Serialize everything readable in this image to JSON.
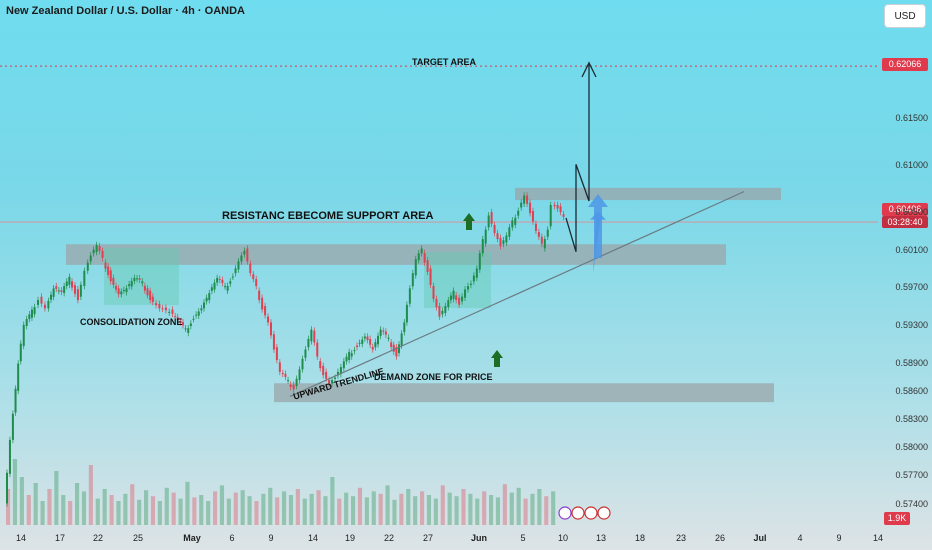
{
  "header": {
    "title": "New Zealand Dollar / U.S. Dollar · 4h · OANDA",
    "currency_button": "USD"
  },
  "annotations": {
    "target_area": "TARGET AREA",
    "resistance_support": "RESISTANC EBECOME SUPPORT AREA",
    "consolidation_zone": "CONSOLIDATION ZONE",
    "upward_trendline": "UPWARD TRENDLINE",
    "demand_zone": "DEMAND ZONE FOR PRICE"
  },
  "price_tags": {
    "target_price": "0.62066",
    "current_price": "0.60406",
    "countdown": "03:28:40",
    "volume": "1.9K"
  },
  "colors": {
    "up": "#1e8c4a",
    "down": "#e0404f",
    "zone": "#9aa6aa",
    "arrow_up_green": "#1b6e23",
    "blue_arrow": "#4d96e6",
    "target_line": "#e03a4d"
  },
  "chart_data": {
    "type": "candlestick",
    "title": "New Zealand Dollar / U.S. Dollar · 4h · OANDA",
    "y_ticks": [
      "0.61500",
      "0.61000",
      "0.60500",
      "0.60100",
      "0.59700",
      "0.59300",
      "0.58900",
      "0.58600",
      "0.58300",
      "0.58000",
      "0.57700",
      "0.57400"
    ],
    "ylim": [
      0.5715,
      0.6245
    ],
    "x_tick_labels": [
      "14",
      "17",
      "22",
      "25",
      "May",
      "6",
      "9",
      "14",
      "19",
      "22",
      "27",
      "Jun",
      "5",
      "10",
      "13",
      "18",
      "23",
      "26",
      "Jul",
      "4",
      "9",
      "14"
    ],
    "icons": [
      "bolt-icon",
      "us-flag-icon",
      "us-flag-icon",
      "us-flag-icon"
    ],
    "zones": [
      {
        "name": "TARGET AREA",
        "price": 0.62066
      },
      {
        "name": "Resistance / support upper box",
        "low": 0.6064,
        "high": 0.6077
      },
      {
        "name": "RESISTANC EBECOME SUPPORT AREA",
        "low": 0.5995,
        "high": 0.6017
      },
      {
        "name": "DEMAND ZONE FOR PRICE",
        "low": 0.5849,
        "high": 0.5869
      }
    ],
    "series": [
      {
        "name": "price_path",
        "points": [
          [
            0,
            0.574
          ],
          [
            6,
            0.581
          ],
          [
            14,
            0.589
          ],
          [
            20,
            0.593
          ],
          [
            28,
            0.5945
          ],
          [
            35,
            0.596
          ],
          [
            42,
            0.595
          ],
          [
            50,
            0.597
          ],
          [
            58,
            0.5965
          ],
          [
            66,
            0.598
          ],
          [
            75,
            0.596
          ],
          [
            82,
            0.599
          ],
          [
            88,
            0.6005
          ],
          [
            94,
            0.6015
          ],
          [
            100,
            0.6
          ],
          [
            108,
            0.598
          ],
          [
            116,
            0.5965
          ],
          [
            124,
            0.597
          ],
          [
            132,
            0.598
          ],
          [
            140,
            0.5975
          ],
          [
            148,
            0.596
          ],
          [
            158,
            0.595
          ],
          [
            168,
            0.5945
          ],
          [
            176,
            0.5935
          ],
          [
            184,
            0.5925
          ],
          [
            192,
            0.594
          ],
          [
            200,
            0.595
          ],
          [
            208,
            0.5965
          ],
          [
            216,
            0.598
          ],
          [
            224,
            0.597
          ],
          [
            232,
            0.5985
          ],
          [
            238,
            0.6
          ],
          [
            244,
            0.601
          ],
          [
            250,
            0.5985
          ],
          [
            256,
            0.597
          ],
          [
            262,
            0.595
          ],
          [
            268,
            0.5935
          ],
          [
            274,
            0.5905
          ],
          [
            280,
            0.588
          ],
          [
            288,
            0.587
          ],
          [
            294,
            0.5865
          ],
          [
            300,
            0.5885
          ],
          [
            306,
            0.5905
          ],
          [
            312,
            0.5925
          ],
          [
            318,
            0.5895
          ],
          [
            324,
            0.588
          ],
          [
            330,
            0.587
          ],
          [
            336,
            0.5875
          ],
          [
            342,
            0.5885
          ],
          [
            350,
            0.59
          ],
          [
            358,
            0.591
          ],
          [
            366,
            0.592
          ],
          [
            374,
            0.5905
          ],
          [
            382,
            0.5925
          ],
          [
            390,
            0.5915
          ],
          [
            398,
            0.59
          ],
          [
            406,
            0.5935
          ],
          [
            412,
            0.597
          ],
          [
            418,
            0.6
          ],
          [
            424,
            0.601
          ],
          [
            430,
            0.599
          ],
          [
            436,
            0.596
          ],
          [
            442,
            0.594
          ],
          [
            448,
            0.595
          ],
          [
            456,
            0.5965
          ],
          [
            462,
            0.5955
          ],
          [
            468,
            0.597
          ],
          [
            474,
            0.5975
          ],
          [
            480,
            0.599
          ],
          [
            486,
            0.602
          ],
          [
            492,
            0.605
          ],
          [
            498,
            0.603
          ],
          [
            504,
            0.6015
          ],
          [
            510,
            0.6025
          ],
          [
            516,
            0.604
          ],
          [
            522,
            0.6055
          ],
          [
            528,
            0.607
          ],
          [
            534,
            0.605
          ],
          [
            540,
            0.603
          ],
          [
            546,
            0.6015
          ],
          [
            552,
            0.6035
          ],
          [
            556,
            0.606
          ],
          [
            562,
            0.6055
          ],
          [
            568,
            0.6045
          ]
        ]
      },
      {
        "name": "volume",
        "values": [
          0.3,
          0.55,
          0.4,
          0.25,
          0.35,
          0.2,
          0.3,
          0.45,
          0.25,
          0.2,
          0.35,
          0.28,
          0.5,
          0.22,
          0.3,
          0.25,
          0.2,
          0.26,
          0.34,
          0.21,
          0.29,
          0.24,
          0.2,
          0.31,
          0.27,
          0.22,
          0.36,
          0.23,
          0.25,
          0.2,
          0.28,
          0.33,
          0.22,
          0.27,
          0.29,
          0.24,
          0.2,
          0.26,
          0.31,
          0.23,
          0.28,
          0.25,
          0.3,
          0.22,
          0.26,
          0.29,
          0.24,
          0.4,
          0.22,
          0.27,
          0.24,
          0.31,
          0.23,
          0.28,
          0.26,
          0.33,
          0.21,
          0.26,
          0.3,
          0.24,
          0.28,
          0.25,
          0.22,
          0.33,
          0.27,
          0.24,
          0.3,
          0.26,
          0.22,
          0.28,
          0.25,
          0.23,
          0.34,
          0.27,
          0.31,
          0.22,
          0.26,
          0.3,
          0.24,
          0.28
        ]
      }
    ]
  }
}
